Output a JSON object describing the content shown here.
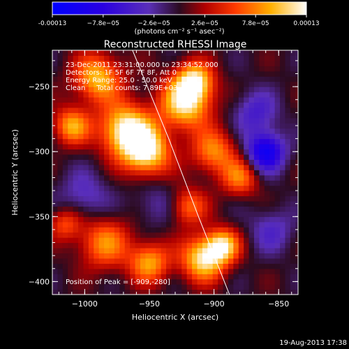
{
  "chart_data": {
    "type": "heatmap",
    "title": "Reconstructed RHESSI Image",
    "xlabel": "Heliocentric X (arcsec)",
    "ylabel": "Heliocentric Y (arcsec)",
    "xlim": [
      -1025,
      -835
    ],
    "ylim": [
      -410,
      -222
    ],
    "x_ticks": [
      -1000,
      -950,
      -900,
      -850
    ],
    "y_ticks": [
      -250,
      -300,
      -350,
      -400
    ],
    "colorbar": {
      "range": [
        -0.00013,
        0.00013
      ],
      "tick_values": [
        -0.00013,
        -7.8e-05,
        -2.6e-05,
        2.6e-05,
        7.8e-05,
        0.00013
      ],
      "tick_labels": [
        "-0.00013",
        "−7.8e−05",
        "−2.6e−05",
        "2.6e−05",
        "7.8e−05",
        "0.00013"
      ],
      "units": "(photons cm⁻² s⁻¹ asec⁻²)"
    },
    "blobs": [
      {
        "x": -968,
        "y": -283,
        "amp": 0.00013,
        "r": 14
      },
      {
        "x": -952,
        "y": -300,
        "amp": 0.00012,
        "r": 13
      },
      {
        "x": -990,
        "y": -243,
        "amp": 0.0001,
        "r": 13
      },
      {
        "x": -1010,
        "y": -280,
        "amp": 9e-05,
        "r": 10
      },
      {
        "x": -922,
        "y": -262,
        "amp": 0.00012,
        "r": 14
      },
      {
        "x": -915,
        "y": -245,
        "amp": 0.0001,
        "r": 10
      },
      {
        "x": -900,
        "y": -300,
        "amp": 8e-05,
        "r": 12
      },
      {
        "x": -880,
        "y": -320,
        "amp": 7e-05,
        "r": 10
      },
      {
        "x": -920,
        "y": -342,
        "amp": 7e-05,
        "r": 10
      },
      {
        "x": -985,
        "y": -370,
        "amp": 8e-05,
        "r": 14
      },
      {
        "x": -950,
        "y": -385,
        "amp": 9e-05,
        "r": 11
      },
      {
        "x": -908,
        "y": -382,
        "amp": 0.00012,
        "r": 12
      },
      {
        "x": -893,
        "y": -372,
        "amp": 0.0001,
        "r": 9
      },
      {
        "x": -1015,
        "y": -355,
        "amp": 6e-05,
        "r": 9
      },
      {
        "x": -1000,
        "y": -335,
        "amp": -4e-05,
        "r": 14
      },
      {
        "x": -860,
        "y": -300,
        "amp": -0.00011,
        "r": 10
      },
      {
        "x": -868,
        "y": -270,
        "amp": -5e-05,
        "r": 12
      },
      {
        "x": -855,
        "y": -360,
        "amp": -4e-05,
        "r": 12
      },
      {
        "x": -945,
        "y": -340,
        "amp": -3e-05,
        "r": 12
      }
    ],
    "limb_curve": [
      [
        -963,
        -222
      ],
      [
        -935,
        -290
      ],
      [
        -912,
        -350
      ],
      [
        -888,
        -410
      ]
    ],
    "annotations": {
      "time": "23-Dec-2011 23:31:00.000 to 23:34:52.000",
      "detectors": "Detectors: 1F 5F 6F 7F 8F, Att 0",
      "energy": "Energy Range: 25.0 - 50.0 keV",
      "clean": "Clean     Total counts: 7.89E+03",
      "peak": "Position of Peak = [-909,-280]"
    }
  },
  "footer": {
    "timestamp": "19-Aug-2013 17:38"
  }
}
